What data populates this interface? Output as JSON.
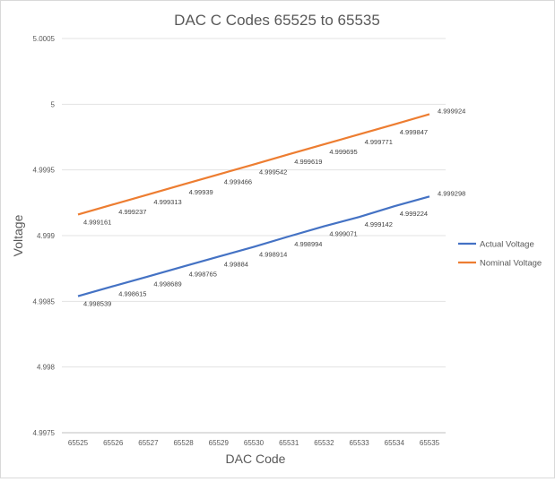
{
  "chart_data": {
    "type": "line",
    "title": "DAC C Codes 65525 to 65535",
    "xlabel": "DAC Code",
    "ylabel": "Voltage",
    "x": [
      65525,
      65526,
      65527,
      65528,
      65529,
      65530,
      65531,
      65532,
      65533,
      65534,
      65535
    ],
    "ylim": [
      4.9975,
      5.0005
    ],
    "yticks": [
      "4.9975",
      "4.998",
      "4.9985",
      "4.999",
      "4.9995",
      "5",
      "5.0005"
    ],
    "grid": true,
    "legend_position": "right",
    "series": [
      {
        "name": "Actual Voltage",
        "color": "#4472c4",
        "values": [
          4.998539,
          4.998615,
          4.998689,
          4.998765,
          4.99884,
          4.998914,
          4.998994,
          4.999071,
          4.999142,
          4.999224,
          4.999298
        ],
        "labels": [
          "4.998539",
          "4.998615",
          "4.998689",
          "4.998765",
          "4.99884",
          "4.998914",
          "4.998994",
          "4.999071",
          "4.999142",
          "4.999224",
          "4.999298"
        ]
      },
      {
        "name": "Nominal Voltage",
        "color": "#ed7d31",
        "values": [
          4.999161,
          4.999237,
          4.999313,
          4.99939,
          4.999466,
          4.999542,
          4.999619,
          4.999695,
          4.999771,
          4.999847,
          4.999924
        ],
        "labels": [
          "4.999161",
          "4.999237",
          "4.999313",
          "4.99939",
          "4.999466",
          "4.999542",
          "4.999619",
          "4.999695",
          "4.999771",
          "4.999847",
          "4.999924"
        ]
      }
    ]
  }
}
